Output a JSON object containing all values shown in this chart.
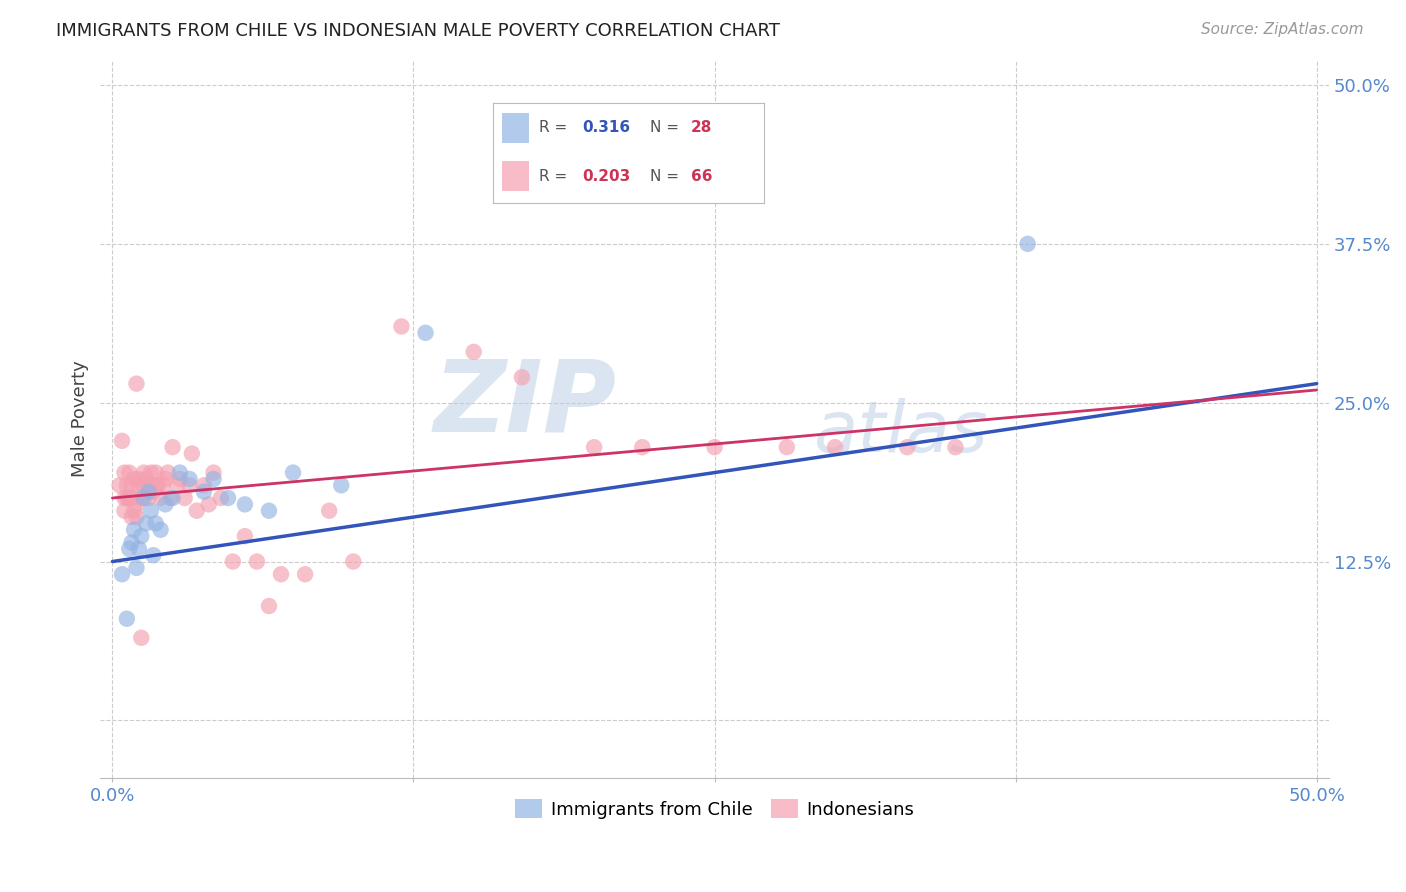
{
  "title": "IMMIGRANTS FROM CHILE VS INDONESIAN MALE POVERTY CORRELATION CHART",
  "source": "Source: ZipAtlas.com",
  "ylabel_label": "Male Poverty",
  "x_ticks": [
    0.0,
    0.125,
    0.25,
    0.375,
    0.5
  ],
  "y_ticks": [
    0.0,
    0.125,
    0.25,
    0.375,
    0.5
  ],
  "xlim": [
    -0.005,
    0.505
  ],
  "ylim": [
    -0.045,
    0.52
  ],
  "chile_R": "0.316",
  "chile_N": "28",
  "indo_R": "0.203",
  "indo_N": "66",
  "chile_color": "#92b4e3",
  "indo_color": "#f4a0b0",
  "chile_line_color": "#3355bb",
  "indo_line_color": "#cc3366",
  "background_color": "#ffffff",
  "grid_color": "#cccccc",
  "watermark_zip": "ZIP",
  "watermark_atlas": "atlas",
  "watermark_color_zip": "#b8cce4",
  "watermark_color_atlas": "#b8cce4",
  "legend_label_chile": "Immigrants from Chile",
  "legend_label_indo": "Indonesians",
  "chile_scatter_x": [
    0.004,
    0.006,
    0.007,
    0.008,
    0.009,
    0.01,
    0.011,
    0.012,
    0.013,
    0.014,
    0.015,
    0.016,
    0.017,
    0.018,
    0.02,
    0.022,
    0.025,
    0.028,
    0.032,
    0.038,
    0.042,
    0.048,
    0.055,
    0.065,
    0.075,
    0.095,
    0.13,
    0.38
  ],
  "chile_scatter_y": [
    0.115,
    0.08,
    0.135,
    0.14,
    0.15,
    0.12,
    0.135,
    0.145,
    0.175,
    0.155,
    0.18,
    0.165,
    0.13,
    0.155,
    0.15,
    0.17,
    0.175,
    0.195,
    0.19,
    0.18,
    0.19,
    0.175,
    0.17,
    0.165,
    0.195,
    0.185,
    0.305,
    0.375
  ],
  "indo_scatter_x": [
    0.003,
    0.004,
    0.005,
    0.005,
    0.006,
    0.006,
    0.007,
    0.007,
    0.008,
    0.008,
    0.009,
    0.01,
    0.01,
    0.011,
    0.011,
    0.012,
    0.013,
    0.013,
    0.014,
    0.015,
    0.015,
    0.016,
    0.017,
    0.018,
    0.018,
    0.019,
    0.02,
    0.021,
    0.022,
    0.023,
    0.024,
    0.025,
    0.027,
    0.028,
    0.03,
    0.032,
    0.033,
    0.035,
    0.038,
    0.04,
    0.042,
    0.045,
    0.05,
    0.055,
    0.06,
    0.065,
    0.07,
    0.08,
    0.09,
    0.1,
    0.12,
    0.15,
    0.17,
    0.2,
    0.22,
    0.25,
    0.28,
    0.3,
    0.33,
    0.35,
    0.005,
    0.007,
    0.008,
    0.009,
    0.01,
    0.012
  ],
  "indo_scatter_y": [
    0.185,
    0.22,
    0.165,
    0.195,
    0.175,
    0.185,
    0.195,
    0.175,
    0.16,
    0.185,
    0.19,
    0.17,
    0.265,
    0.185,
    0.19,
    0.175,
    0.185,
    0.195,
    0.19,
    0.175,
    0.185,
    0.195,
    0.18,
    0.185,
    0.195,
    0.185,
    0.175,
    0.185,
    0.19,
    0.195,
    0.175,
    0.215,
    0.185,
    0.19,
    0.175,
    0.185,
    0.21,
    0.165,
    0.185,
    0.17,
    0.195,
    0.175,
    0.125,
    0.145,
    0.125,
    0.09,
    0.115,
    0.115,
    0.165,
    0.125,
    0.31,
    0.29,
    0.27,
    0.215,
    0.215,
    0.215,
    0.215,
    0.215,
    0.215,
    0.215,
    0.175,
    0.175,
    0.175,
    0.165,
    0.16,
    0.065
  ],
  "chile_line_start_y": 0.125,
  "chile_line_end_y": 0.265,
  "indo_line_start_y": 0.175,
  "indo_line_end_y": 0.26
}
